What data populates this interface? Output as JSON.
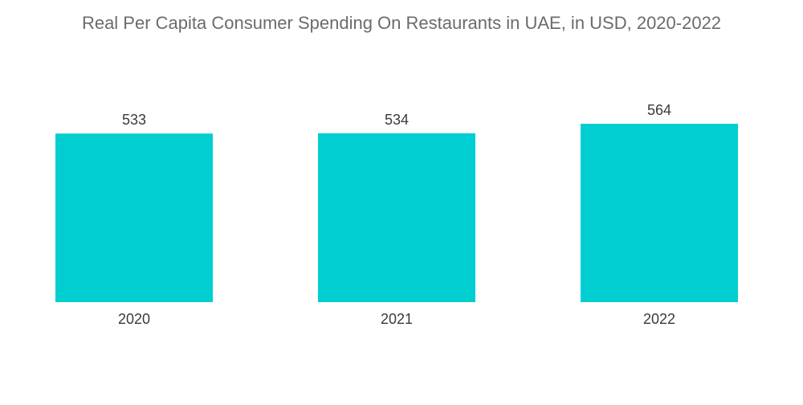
{
  "chart_data": {
    "type": "bar",
    "title": "Real Per Capita Consumer Spending On Restaurants in UAE, in USD, 2020-2022",
    "categories": [
      "2020",
      "2021",
      "2022"
    ],
    "values": [
      533,
      534,
      564
    ],
    "value_labels": [
      "533",
      "534",
      "564"
    ],
    "xlabel": "",
    "ylabel": "",
    "grid": false,
    "legend": "none",
    "colors": {
      "bar": "#00CED1",
      "title": "#6b6b6b",
      "text": "#3a3a3a"
    }
  }
}
